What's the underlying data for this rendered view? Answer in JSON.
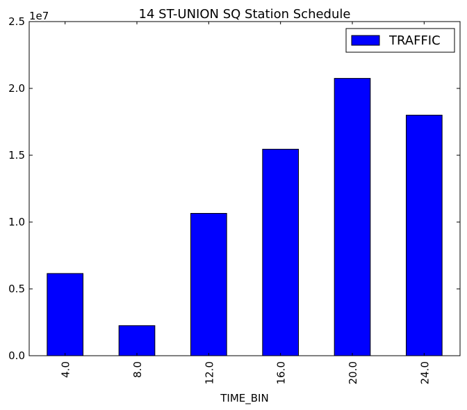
{
  "chart_data": {
    "type": "bar",
    "title": "14 ST-UNION SQ Station Schedule",
    "xlabel": "TIME_BIN",
    "ylabel": "",
    "categories": [
      "4.0",
      "8.0",
      "12.0",
      "16.0",
      "20.0",
      "24.0"
    ],
    "series": [
      {
        "name": "TRAFFIC",
        "values": [
          6150000,
          2250000,
          10650000,
          15450000,
          20750000,
          18000000
        ]
      }
    ],
    "ylim": [
      0,
      25000000
    ],
    "yticks": [
      {
        "value": 0,
        "label": "0.0"
      },
      {
        "value": 5000000,
        "label": "0.5"
      },
      {
        "value": 10000000,
        "label": "1.0"
      },
      {
        "value": 15000000,
        "label": "1.5"
      },
      {
        "value": 20000000,
        "label": "2.0"
      },
      {
        "value": 25000000,
        "label": "2.5"
      }
    ],
    "y_offset_text": "1e7",
    "grid": false,
    "legend_position": "upper-right",
    "bar_color": "#0000ff",
    "edge_color": "#000000"
  }
}
